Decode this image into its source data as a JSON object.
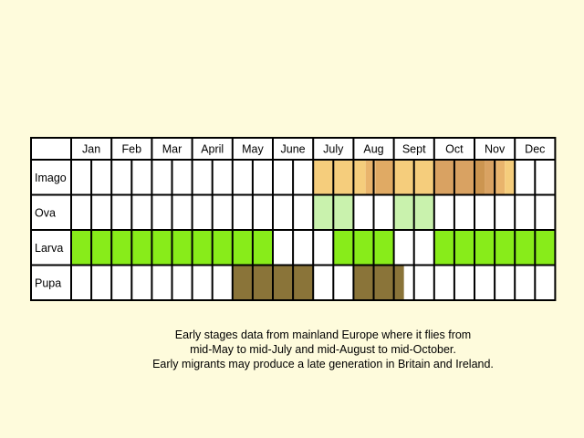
{
  "chart_data": {
    "type": "table",
    "columns": [
      "Jan",
      "Feb",
      "Mar",
      "April",
      "May",
      "June",
      "July",
      "Aug",
      "Sept",
      "Oct",
      "Nov",
      "Dec"
    ],
    "subdivisions_per_month": 2,
    "rows": [
      {
        "label": "Imago",
        "segments": [
          {
            "start": 6.0,
            "end": 7.3,
            "color": "#f5cd7c"
          },
          {
            "start": 7.3,
            "end": 7.55,
            "color": "#e9b46c"
          },
          {
            "start": 7.55,
            "end": 8.0,
            "color": "#e0aa64"
          },
          {
            "start": 8.0,
            "end": 9.0,
            "color": "#f5cd7c"
          },
          {
            "start": 9.0,
            "end": 10.0,
            "color": "#d9a262"
          },
          {
            "start": 10.0,
            "end": 10.25,
            "color": "#cc9550"
          },
          {
            "start": 10.25,
            "end": 10.55,
            "color": "#d9a262"
          },
          {
            "start": 10.55,
            "end": 10.75,
            "color": "#e9b46c"
          },
          {
            "start": 10.75,
            "end": 11.0,
            "color": "#f5cd7c"
          }
        ]
      },
      {
        "label": "Ova",
        "segments": [
          {
            "start": 6.0,
            "end": 7.0,
            "color": "#c9f2ad"
          },
          {
            "start": 8.0,
            "end": 9.0,
            "color": "#c9f2ad"
          }
        ]
      },
      {
        "label": "Larva",
        "segments": [
          {
            "start": 0.0,
            "end": 5.0,
            "color": "#88ec1a"
          },
          {
            "start": 6.5,
            "end": 8.0,
            "color": "#88ec1a"
          },
          {
            "start": 9.0,
            "end": 12.0,
            "color": "#88ec1a"
          }
        ]
      },
      {
        "label": "Pupa",
        "segments": [
          {
            "start": 4.0,
            "end": 6.0,
            "color": "#8a7439"
          },
          {
            "start": 7.0,
            "end": 8.25,
            "color": "#8a7439"
          }
        ]
      }
    ],
    "colors": {
      "background": "#fefbdc",
      "cell": "#ffffff",
      "grid": "#000000"
    }
  },
  "caption": {
    "lines": [
      "Early stages data from mainland Europe where it flies from",
      "mid-May to mid-July and mid-August to mid-October.",
      "Early migrants may produce a late generation in Britain and Ireland."
    ]
  }
}
